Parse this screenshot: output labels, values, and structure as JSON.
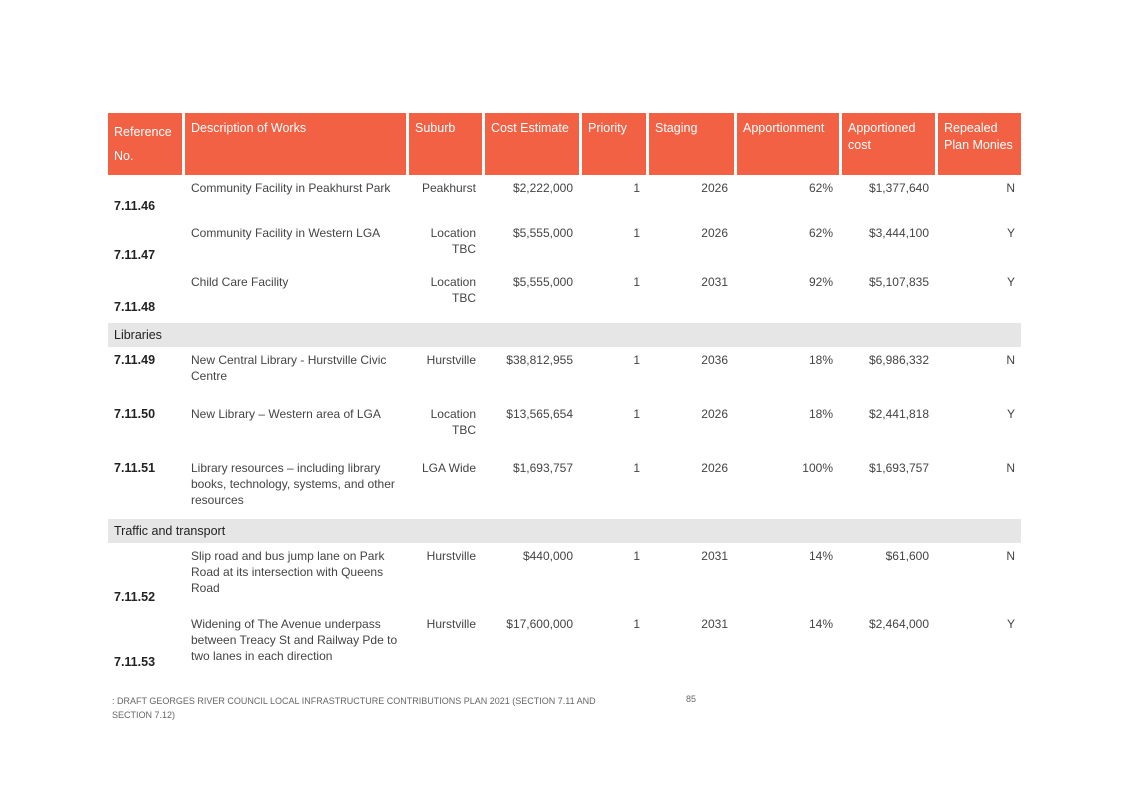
{
  "headers": [
    "Reference No.",
    "Description of Works",
    "Suburb",
    "Cost Estimate",
    "Priority",
    "Staging",
    "Apportionment",
    "Apportioned cost",
    "Repealed Plan Monies"
  ],
  "rows": [
    {
      "ref": "7.11.46",
      "desc": "Community Facility in Peakhurst Park",
      "suburb": "Peakhurst",
      "cost": "$2,222,000",
      "priority": "1",
      "staging": "2026",
      "apport": "62%",
      "apcost": "$1,377,640",
      "repealed": "N"
    },
    {
      "ref": "7.11.47",
      "desc": "Community Facility in Western LGA",
      "suburb": "Location TBC",
      "cost": "$5,555,000",
      "priority": "1",
      "staging": "2026",
      "apport": "62%",
      "apcost": "$3,444,100",
      "repealed": "Y"
    },
    {
      "ref": "7.11.48",
      "desc": "Child Care Facility",
      "suburb": "Location TBC",
      "cost": "$5,555,000",
      "priority": "1",
      "staging": "2031",
      "apport": "92%",
      "apcost": "$5,107,835",
      "repealed": "Y"
    },
    {
      "ref": "7.11.49",
      "desc": "New Central Library - Hurstville Civic Centre",
      "suburb": "Hurstville",
      "cost": "$38,812,955",
      "priority": "1",
      "staging": "2036",
      "apport": "18%",
      "apcost": "$6,986,332",
      "repealed": "N"
    },
    {
      "ref": "7.11.50",
      "desc": "New Library – Western area of LGA",
      "suburb": "Location TBC",
      "cost": "$13,565,654",
      "priority": "1",
      "staging": "2026",
      "apport": "18%",
      "apcost": "$2,441,818",
      "repealed": "Y"
    },
    {
      "ref": "7.11.51",
      "desc": "Library resources – including library books, technology, systems, and other resources",
      "suburb": "LGA Wide",
      "cost": "$1,693,757",
      "priority": "1",
      "staging": "2026",
      "apport": "100%",
      "apcost": "$1,693,757",
      "repealed": "N"
    },
    {
      "ref": "7.11.52",
      "desc": "Slip road and bus jump lane on Park Road at its intersection with Queens Road",
      "suburb": "Hurstville",
      "cost": "$440,000",
      "priority": "1",
      "staging": "2031",
      "apport": "14%",
      "apcost": "$61,600",
      "repealed": "N"
    },
    {
      "ref": "7.11.53",
      "desc": "Widening of The Avenue underpass between Treacy St and Railway Pde to two lanes in each direction",
      "suburb": "Hurstville",
      "cost": "$17,600,000",
      "priority": "1",
      "staging": "2031",
      "apport": "14%",
      "apcost": "$2,464,000",
      "repealed": "Y"
    }
  ],
  "sections": [
    "Libraries",
    "Traffic and transport"
  ],
  "footer": ": DRAFT GEORGES RIVER COUNCIL LOCAL INFRASTRUCTURE CONTRIBUTIONS PLAN 2021 (SECTION 7.11 AND SECTION 7.12)",
  "page_number": "85",
  "colors": {
    "header": "#f26144",
    "section": "#e6e6e6"
  }
}
